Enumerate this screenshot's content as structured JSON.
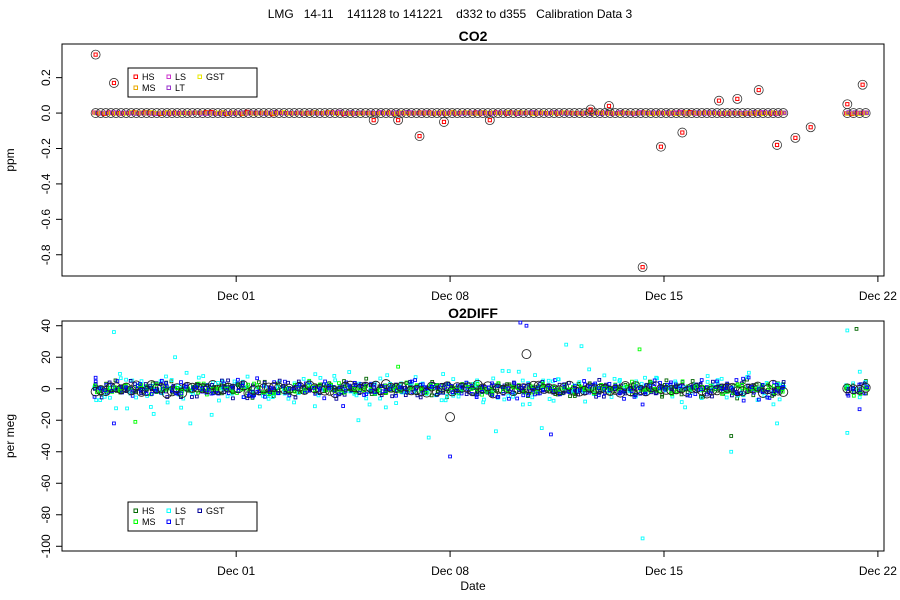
{
  "figure": {
    "title": "LMG   14-11    141128 to 141221    d332 to d355   Calibration Data 3"
  },
  "chart_data": [
    {
      "type": "scatter",
      "title": "CO2",
      "xlabel": "",
      "ylabel": "ppm",
      "x_range_days": [
        26.3,
        53.2
      ],
      "ylim": [
        -0.92,
        0.39
      ],
      "x_ticks": [
        {
          "day": 32,
          "label": "Dec 01"
        },
        {
          "day": 39,
          "label": "Dec 08"
        },
        {
          "day": 46,
          "label": "Dec 15"
        },
        {
          "day": 53,
          "label": "Dec 22"
        }
      ],
      "y_ticks": [
        {
          "v": 0.2,
          "label": "0.2"
        },
        {
          "v": 0.0,
          "label": "0.0"
        },
        {
          "v": -0.2,
          "label": "-0.2"
        },
        {
          "v": -0.4,
          "label": "-0.4"
        },
        {
          "v": -0.6,
          "label": "-0.6"
        },
        {
          "v": -0.8,
          "label": "-0.8"
        }
      ],
      "legend": {
        "position": "top-left",
        "items": [
          {
            "label": "HS",
            "color": "#ff0000"
          },
          {
            "label": "LS",
            "color": "#cc33cc"
          },
          {
            "label": "GST",
            "color": "#e8e800"
          },
          {
            "label": "MS",
            "color": "#e8a800"
          },
          {
            "label": "LT",
            "color": "#9933cc"
          }
        ]
      },
      "cycles": {
        "start_day": 27.4,
        "end_day": 50.0,
        "step_days": 0.1667,
        "baseline": 0.0
      },
      "cycles_late": {
        "start_day": 52.0,
        "end_day": 52.6,
        "step_days": 0.2
      },
      "outliers": [
        {
          "day": 27.4,
          "value": 0.33
        },
        {
          "day": 28.0,
          "value": 0.17
        },
        {
          "day": 28.7,
          "value": 0.21
        },
        {
          "day": 36.5,
          "value": -0.04
        },
        {
          "day": 37.3,
          "value": -0.04
        },
        {
          "day": 38.0,
          "value": -0.13
        },
        {
          "day": 38.8,
          "value": -0.05
        },
        {
          "day": 40.3,
          "value": -0.04
        },
        {
          "day": 43.6,
          "value": 0.02
        },
        {
          "day": 44.2,
          "value": 0.04
        },
        {
          "day": 45.3,
          "value": -0.87
        },
        {
          "day": 45.9,
          "value": -0.19
        },
        {
          "day": 46.6,
          "value": -0.11
        },
        {
          "day": 47.8,
          "value": 0.07
        },
        {
          "day": 48.4,
          "value": 0.08
        },
        {
          "day": 49.1,
          "value": 0.13
        },
        {
          "day": 49.7,
          "value": -0.18
        },
        {
          "day": 50.3,
          "value": -0.14
        },
        {
          "day": 50.8,
          "value": -0.08
        },
        {
          "day": 52.0,
          "value": 0.05
        },
        {
          "day": 52.5,
          "value": 0.16
        }
      ]
    },
    {
      "type": "scatter",
      "title": "O2DIFF",
      "xlabel": "Date",
      "ylabel": "per meg",
      "x_range_days": [
        26.3,
        53.2
      ],
      "ylim": [
        -103,
        43
      ],
      "x_ticks": [
        {
          "day": 32,
          "label": "Dec 01"
        },
        {
          "day": 39,
          "label": "Dec 08"
        },
        {
          "day": 46,
          "label": "Dec 15"
        },
        {
          "day": 53,
          "label": "Dec 22"
        }
      ],
      "y_ticks": [
        {
          "v": 40,
          "label": "40"
        },
        {
          "v": 20,
          "label": "20"
        },
        {
          "v": 0,
          "label": "0"
        },
        {
          "v": -20,
          "label": "-20"
        },
        {
          "v": -40,
          "label": "-40"
        },
        {
          "v": -60,
          "label": "-60"
        },
        {
          "v": -80,
          "label": "-80"
        },
        {
          "v": -100,
          "label": "-100"
        }
      ],
      "legend": {
        "position": "bottom-left",
        "items": [
          {
            "label": "HS",
            "color": "#006600"
          },
          {
            "label": "LS",
            "color": "#00ffff"
          },
          {
            "label": "GST",
            "color": "#000099"
          },
          {
            "label": "MS",
            "color": "#00ff00"
          },
          {
            "label": "LT",
            "color": "#0000ff"
          }
        ]
      },
      "cycles": {
        "start_day": 27.4,
        "end_day": 50.0,
        "step_days": 0.1667,
        "baseline": 0.0
      },
      "cycles_late": {
        "start_day": 52.0,
        "end_day": 52.6,
        "step_days": 0.2
      },
      "outliers": [
        {
          "day": 27.4,
          "value": 7,
          "color": "#0000ff"
        },
        {
          "day": 28.0,
          "value": 36,
          "color": "#00ffff"
        },
        {
          "day": 28.0,
          "value": -22,
          "color": "#0000ff"
        },
        {
          "day": 28.7,
          "value": -21,
          "color": "#00ff00"
        },
        {
          "day": 29.3,
          "value": -16,
          "color": "#00ffff"
        },
        {
          "day": 30.0,
          "value": 20,
          "color": "#00ffff"
        },
        {
          "day": 30.2,
          "value": -12,
          "color": "#00ffff"
        },
        {
          "day": 30.5,
          "value": -22,
          "color": "#00ffff"
        },
        {
          "day": 35.5,
          "value": -11,
          "color": "#0000ff"
        },
        {
          "day": 36.0,
          "value": -20,
          "color": "#00ffff"
        },
        {
          "day": 37.3,
          "value": 14,
          "color": "#00ff00"
        },
        {
          "day": 38.3,
          "value": -31,
          "color": "#00ffff"
        },
        {
          "day": 39.0,
          "value": -18,
          "color": "#000000"
        },
        {
          "day": 39.0,
          "value": -43,
          "color": "#0000ff"
        },
        {
          "day": 40.5,
          "value": -27,
          "color": "#00ffff"
        },
        {
          "day": 41.3,
          "value": 42,
          "color": "#0000ff"
        },
        {
          "day": 41.5,
          "value": 40,
          "color": "#0000ff"
        },
        {
          "day": 41.5,
          "value": 22,
          "color": "#000000"
        },
        {
          "day": 42.0,
          "value": -25,
          "color": "#00ffff"
        },
        {
          "day": 42.3,
          "value": -29,
          "color": "#0000ff"
        },
        {
          "day": 42.8,
          "value": 28,
          "color": "#00ffff"
        },
        {
          "day": 43.3,
          "value": 27,
          "color": "#00ffff"
        },
        {
          "day": 45.2,
          "value": 25,
          "color": "#00ff00"
        },
        {
          "day": 45.3,
          "value": -95,
          "color": "#00ffff"
        },
        {
          "day": 45.3,
          "value": -10,
          "color": "#0000ff"
        },
        {
          "day": 48.2,
          "value": -40,
          "color": "#00ffff"
        },
        {
          "day": 48.2,
          "value": -30,
          "color": "#006600"
        },
        {
          "day": 49.7,
          "value": -22,
          "color": "#00ffff"
        },
        {
          "day": 52.0,
          "value": 37,
          "color": "#00ffff"
        },
        {
          "day": 52.0,
          "value": -28,
          "color": "#00ffff"
        },
        {
          "day": 52.3,
          "value": 38,
          "color": "#006600"
        },
        {
          "day": 52.4,
          "value": -13,
          "color": "#0000ff"
        }
      ]
    }
  ]
}
